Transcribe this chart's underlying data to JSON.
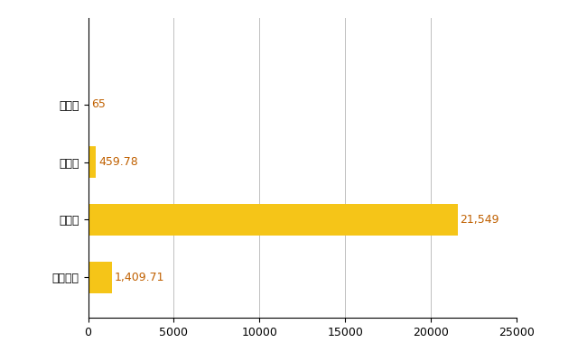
{
  "categories": [
    "全国平均",
    "県最大",
    "県平均",
    "幌延町"
  ],
  "values": [
    1409.71,
    21549,
    459.78,
    65
  ],
  "labels": [
    "1,409.71",
    "21,549",
    "459.78",
    "65"
  ],
  "bar_color": "#F5C518",
  "xlim": [
    0,
    25000
  ],
  "xticks": [
    0,
    5000,
    10000,
    15000,
    20000,
    25000
  ],
  "xtick_labels": [
    "0",
    "5000",
    "10000",
    "15000",
    "20000",
    "25000"
  ],
  "background_color": "#ffffff",
  "grid_color": "#c0c0c0",
  "label_fontsize": 9,
  "tick_fontsize": 9,
  "label_color": "#c06000"
}
